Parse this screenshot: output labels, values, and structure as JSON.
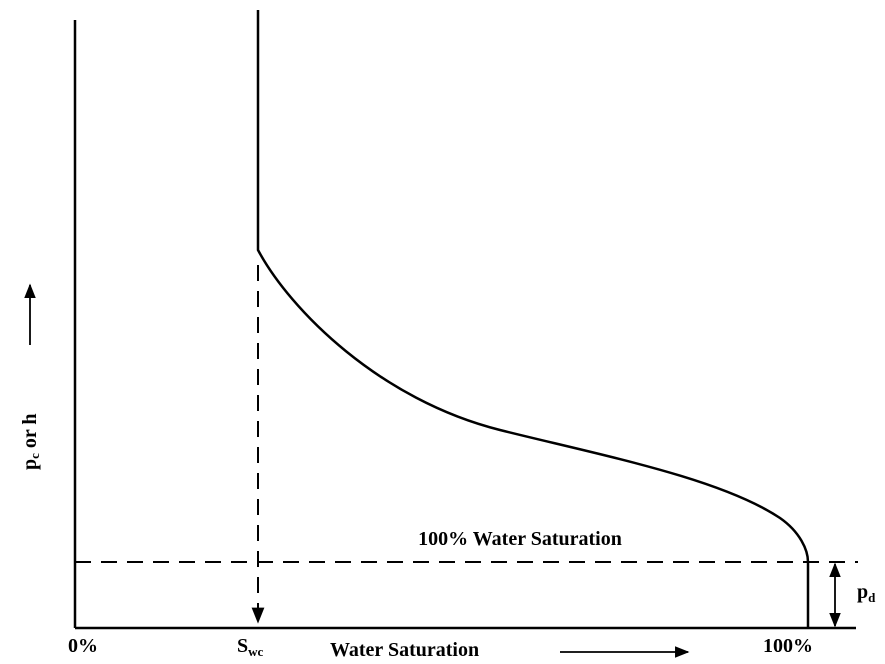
{
  "labels": {
    "origin": "0%",
    "swc": {
      "main": "S",
      "sub": "wc"
    },
    "x_axis": "Water Saturation",
    "end": "100%",
    "line_label": "100% Water Saturation",
    "pd": {
      "main": "p",
      "sub": "d"
    },
    "y_axis": {
      "main": "p",
      "sub": "c",
      "rest": " or h"
    }
  }
}
